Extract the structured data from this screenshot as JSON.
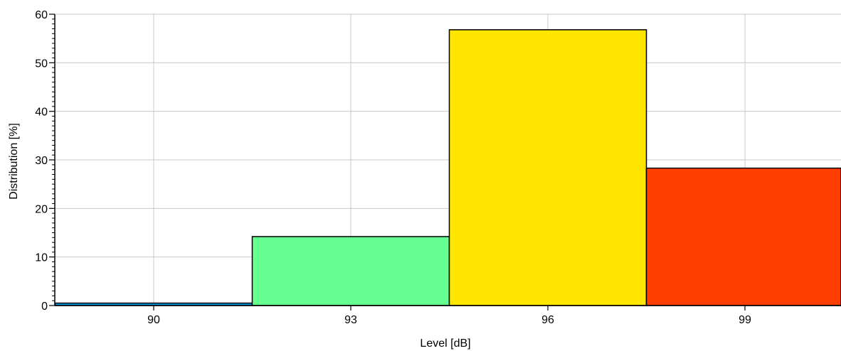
{
  "chart_data": {
    "type": "bar",
    "title": "",
    "xlabel": "Level [dB]",
    "ylabel": "Distribution [%]",
    "categories": [
      "90",
      "93",
      "96",
      "99"
    ],
    "values": [
      0.5,
      14.2,
      56.8,
      28.3
    ],
    "colors": [
      "#00A2E8",
      "#66FF91",
      "#FFE600",
      "#FF3F00"
    ],
    "ylim": [
      0,
      60
    ],
    "yticks": [
      0,
      10,
      20,
      30,
      40,
      50,
      60
    ],
    "grid": true,
    "legend": "none"
  }
}
